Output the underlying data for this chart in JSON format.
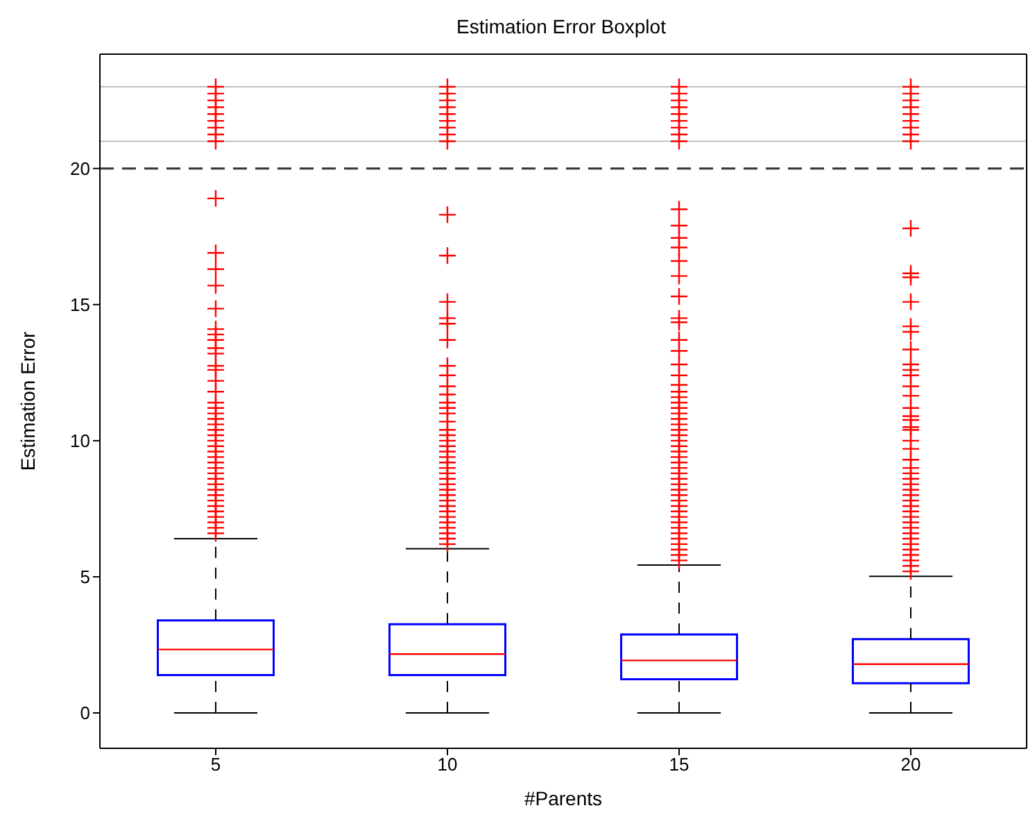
{
  "chart_data": {
    "type": "box",
    "title": "Estimation Error Boxplot",
    "xlabel": "#Parents",
    "ylabel": "Estimation Error",
    "categories": [
      "5",
      "10",
      "15",
      "20"
    ],
    "ylim": [
      -1.3,
      24.2
    ],
    "yticks": [
      0,
      5,
      10,
      15,
      20
    ],
    "ref_lines": [
      {
        "axis": "y",
        "value": 20,
        "color": "#333333",
        "line_style": "dashed"
      },
      {
        "axis": "y",
        "value": 21,
        "color": "#c0c0c0",
        "line_style": "solid"
      },
      {
        "axis": "y",
        "value": 23,
        "color": "#c0c0c0",
        "line_style": "solid"
      }
    ],
    "series": [
      {
        "color": "#0000ff",
        "boxes": [
          {
            "low": 0,
            "q1": 1.39,
            "median": 2.33,
            "q3": 3.4,
            "high": 6.4,
            "outliers": [
              6.6,
              6.8,
              7.0,
              7.2,
              7.4,
              7.6,
              7.8,
              8.0,
              8.2,
              8.4,
              8.6,
              8.8,
              9.0,
              9.2,
              9.4,
              9.6,
              9.8,
              10.0,
              10.2,
              10.4,
              10.6,
              10.8,
              11.0,
              11.2,
              11.4,
              11.8,
              12.2,
              12.6,
              12.75,
              13.2,
              13.4,
              13.7,
              13.9,
              14.1,
              14.85,
              15.7,
              16.3,
              16.9,
              18.9,
              21.0,
              21.25,
              21.5,
              21.75,
              22.0,
              22.25,
              22.5,
              22.75,
              23.0
            ]
          },
          {
            "low": 0,
            "q1": 1.39,
            "median": 2.16,
            "q3": 3.26,
            "high": 6.03,
            "outliers": [
              6.2,
              6.4,
              6.6,
              6.8,
              7.0,
              7.2,
              7.4,
              7.6,
              7.8,
              8.0,
              8.2,
              8.4,
              8.6,
              8.8,
              9.0,
              9.2,
              9.4,
              9.6,
              9.8,
              10.0,
              10.2,
              10.4,
              10.7,
              11.0,
              11.2,
              11.4,
              11.7,
              12.0,
              12.4,
              12.75,
              13.7,
              14.3,
              14.5,
              15.1,
              16.8,
              18.3,
              21.0,
              21.25,
              21.5,
              21.75,
              22.0,
              22.25,
              22.5,
              22.75,
              23.0
            ]
          },
          {
            "low": 0,
            "q1": 1.24,
            "median": 1.93,
            "q3": 2.88,
            "high": 5.43,
            "outliers": [
              5.6,
              5.8,
              6.0,
              6.2,
              6.4,
              6.6,
              6.8,
              7.0,
              7.2,
              7.4,
              7.6,
              7.8,
              8.0,
              8.2,
              8.4,
              8.6,
              8.8,
              9.0,
              9.2,
              9.4,
              9.6,
              9.8,
              10.0,
              10.2,
              10.4,
              10.6,
              10.8,
              11.0,
              11.2,
              11.4,
              11.6,
              11.8,
              12.05,
              12.4,
              12.8,
              13.3,
              13.7,
              14.35,
              14.5,
              15.3,
              16.05,
              16.6,
              17.1,
              17.45,
              17.9,
              18.5,
              21.0,
              21.25,
              21.5,
              21.75,
              22.0,
              22.25,
              22.5,
              22.75,
              23.0
            ]
          },
          {
            "low": 0,
            "q1": 1.09,
            "median": 1.79,
            "q3": 2.71,
            "high": 5.02,
            "outliers": [
              5.2,
              5.4,
              5.6,
              5.8,
              6.0,
              6.2,
              6.4,
              6.6,
              6.8,
              7.0,
              7.2,
              7.4,
              7.6,
              7.8,
              8.0,
              8.2,
              8.4,
              8.6,
              8.8,
              9.0,
              9.3,
              9.7,
              10.0,
              10.4,
              10.5,
              10.76,
              10.9,
              11.2,
              11.65,
              12.0,
              12.4,
              12.6,
              12.8,
              13.35,
              14.0,
              14.2,
              15.1,
              16.0,
              16.15,
              17.8,
              21.0,
              21.25,
              21.5,
              21.75,
              22.0,
              22.25,
              22.5,
              22.75,
              23.0
            ]
          }
        ]
      }
    ]
  }
}
